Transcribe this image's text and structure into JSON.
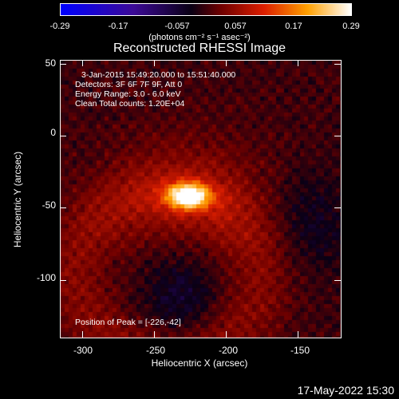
{
  "colorbar": {
    "tick_labels": [
      "-0.29",
      "-0.17",
      "-0.057",
      "0.057",
      "0.17",
      "0.29"
    ],
    "units_label": "(photons cm⁻² s⁻¹ asec⁻²)"
  },
  "chart_data": {
    "type": "heatmap",
    "title": "Reconstructed RHESSI Image",
    "xlabel": "Heliocentric X (arcsec)",
    "ylabel": "Heliocentric Y (arcsec)",
    "xlim": [
      -315,
      -120
    ],
    "ylim": [
      -140,
      52
    ],
    "x_ticks": [
      "-300",
      "-250",
      "-200",
      "-150"
    ],
    "y_ticks": [
      "50",
      "0",
      "-50",
      "-100"
    ],
    "x_tick_values": [
      -300,
      -250,
      -200,
      -150
    ],
    "y_tick_values": [
      50,
      0,
      -50,
      -100
    ],
    "value_range": [
      -0.29,
      0.29
    ],
    "peak": [
      -226,
      -42
    ],
    "info": [
      "3-Jan-2015 15:49:20.000 to 15:51:40.000",
      "Detectors: 3F 6F 7F 9F, Att 0",
      "Energy Range: 3.0 - 6.0 keV",
      "Clean     Total counts: 1.20E+04"
    ],
    "peak_label": "Position of Peak = [-226,-42]"
  },
  "timestamp": "17-May-2022 15:30"
}
